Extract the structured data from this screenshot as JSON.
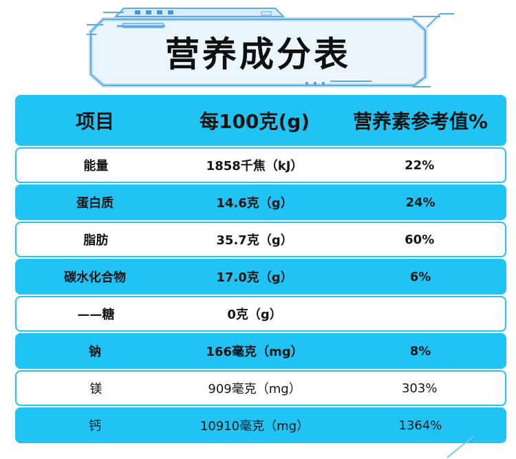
{
  "title": "营养成分表",
  "header": {
    "item": "项目",
    "per100": "每100克(g)",
    "nrv": "营养素参考值%"
  },
  "rows": [
    {
      "item": "能量",
      "per100": "1858千焦（kJ）",
      "nrv": "22%"
    },
    {
      "item": "蛋白质",
      "per100": "14.6克（g）",
      "nrv": "24%"
    },
    {
      "item": "脂肪",
      "per100": "35.7克（g）",
      "nrv": "60%"
    },
    {
      "item": "碳水化合物",
      "per100": "17.0克（g）",
      "nrv": "6%"
    },
    {
      "item": "——糖",
      "per100": "0克（g）",
      "nrv": ""
    },
    {
      "item": "钠",
      "per100": "166毫克（mg）",
      "nrv": "8%"
    },
    {
      "item": "镁",
      "per100": "909毫克（mg）",
      "nrv": "303%"
    },
    {
      "item": "钙",
      "per100": "10910毫克（mg）",
      "nrv": "1364%"
    }
  ],
  "colors": {
    "accent": "#1fc3f4",
    "banner_fill": "#eaf5fd",
    "banner_stroke": "#5fa8e8",
    "text": "#141414"
  }
}
